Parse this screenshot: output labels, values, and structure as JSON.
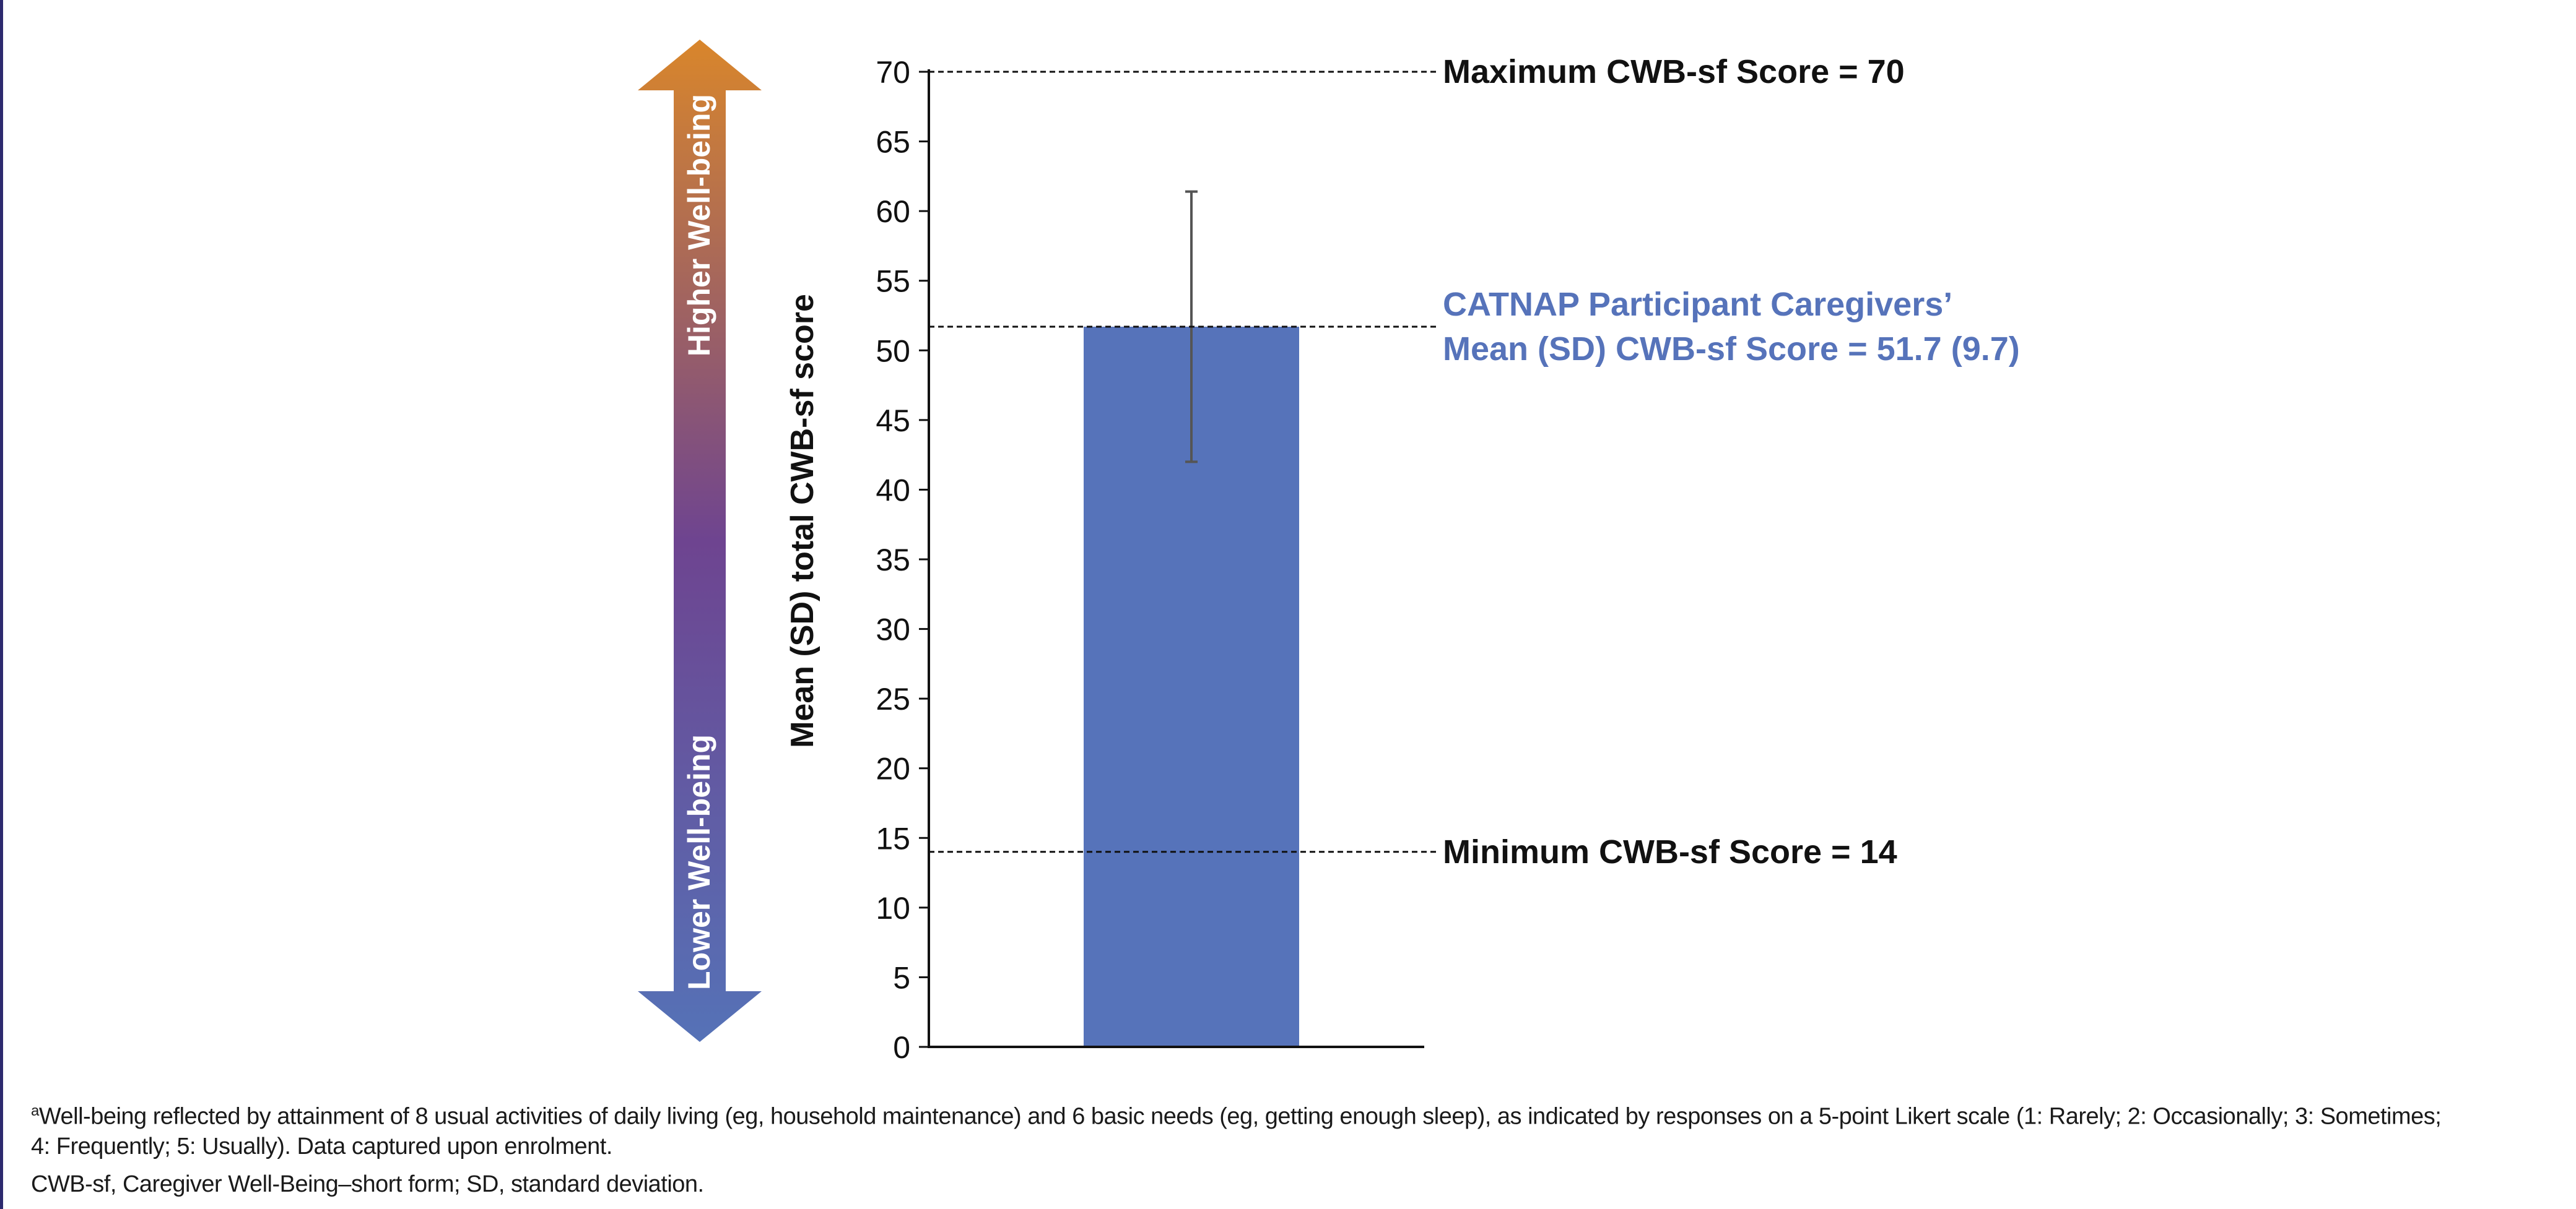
{
  "chart_data": {
    "type": "bar",
    "categories": [
      ""
    ],
    "values": [
      51.7
    ],
    "error": [
      9.7
    ],
    "ylabel": "Mean (SD) total CWB-sf score",
    "ylim": [
      0,
      70
    ],
    "yticks": [
      0,
      5,
      10,
      15,
      20,
      25,
      30,
      35,
      40,
      45,
      50,
      55,
      60,
      65,
      70
    ],
    "bar_color": "#5673ba",
    "reference_lines": [
      {
        "value": 70,
        "label": "Maximum CWB-sf Score = 70",
        "color": "#111111"
      },
      {
        "value": 51.7,
        "label": [
          "CATNAP Participant Caregivers’",
          "Mean (SD) CWB-sf Score = 51.7 (9.7)"
        ],
        "color": "#5673ba"
      },
      {
        "value": 14,
        "label": "Minimum CWB-sf Score = 14",
        "color": "#111111"
      }
    ],
    "wellbeing_arrow": {
      "top_label": "Higher Well-being",
      "bottom_label": "Lower Well-being",
      "colors": [
        "#d9862b",
        "#6e4490",
        "#5572b7"
      ]
    }
  },
  "footnotes": {
    "line1_sup": "a",
    "line1": "Well-being reflected by attainment of 8 usual activities of daily living (eg, household maintenance) and 6 basic needs (eg, getting enough sleep), as indicated by responses on a 5-point Likert scale (1: Rarely; 2: Occasionally; 3: Sometimes;",
    "line2": "4: Frequently; 5: Usually). Data captured upon enrolment.",
    "line3": "CWB-sf, Caregiver Well-Being–short form; SD, standard deviation."
  }
}
